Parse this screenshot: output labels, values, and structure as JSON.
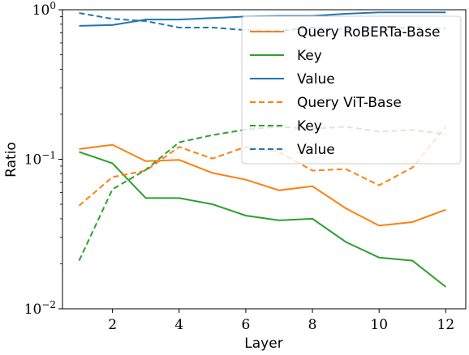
{
  "chart_data": {
    "type": "line",
    "xlabel": "Layer",
    "ylabel": "Ratio",
    "xlim": [
      0.5,
      12.6
    ],
    "ylim": [
      0.01,
      1
    ],
    "yscale": "log",
    "xticks": [
      2,
      4,
      6,
      8,
      10,
      12
    ],
    "yticks": [
      {
        "value": 1,
        "label": "10^0"
      },
      {
        "value": 0.1,
        "label": "10^-1"
      },
      {
        "value": 0.01,
        "label": "10^-2"
      }
    ],
    "grid": false,
    "legend_position": "top-right",
    "x": [
      1,
      2,
      3,
      4,
      5,
      6,
      7,
      8,
      9,
      10,
      11,
      12
    ],
    "series": [
      {
        "name": "Query",
        "group": "RoBERTa-Base",
        "label": "Query RoBERTa-Base",
        "color": "#ff7f0e",
        "style": "solid",
        "values": [
          0.117,
          0.125,
          0.097,
          0.099,
          0.081,
          0.073,
          0.062,
          0.066,
          0.047,
          0.036,
          0.038,
          0.046
        ]
      },
      {
        "name": "Key",
        "group": "RoBERTa-Base",
        "label": "Key",
        "color": "#2ca02c",
        "style": "solid",
        "values": [
          0.112,
          0.094,
          0.055,
          0.055,
          0.05,
          0.042,
          0.039,
          0.04,
          0.028,
          0.022,
          0.021,
          0.014
        ]
      },
      {
        "name": "Value",
        "group": "RoBERTa-Base",
        "label": "Value",
        "color": "#1f77b4",
        "style": "solid",
        "values": [
          0.78,
          0.79,
          0.86,
          0.86,
          0.88,
          0.9,
          0.91,
          0.91,
          0.94,
          0.96,
          0.96,
          0.96
        ]
      },
      {
        "name": "Query",
        "group": "ViT-Base",
        "label": "Query ViT-Base",
        "color": "#ff7f0e",
        "style": "dashed",
        "values": [
          0.049,
          0.076,
          0.084,
          0.121,
          0.101,
          0.121,
          0.112,
          0.084,
          0.086,
          0.067,
          0.088,
          0.165
        ]
      },
      {
        "name": "Key",
        "group": "ViT-Base",
        "label": "Key",
        "color": "#2ca02c",
        "style": "dashed",
        "values": [
          0.021,
          0.063,
          0.085,
          0.13,
          0.145,
          0.158,
          0.165,
          0.16,
          0.165,
          0.153,
          0.157,
          0.147
        ]
      },
      {
        "name": "Value",
        "group": "ViT-Base",
        "label": "Value",
        "color": "#1f77b4",
        "style": "dashed",
        "values": [
          0.95,
          0.87,
          0.84,
          0.76,
          0.76,
          0.73,
          0.72,
          0.76,
          0.74,
          0.75,
          0.76,
          0.75
        ]
      }
    ]
  }
}
